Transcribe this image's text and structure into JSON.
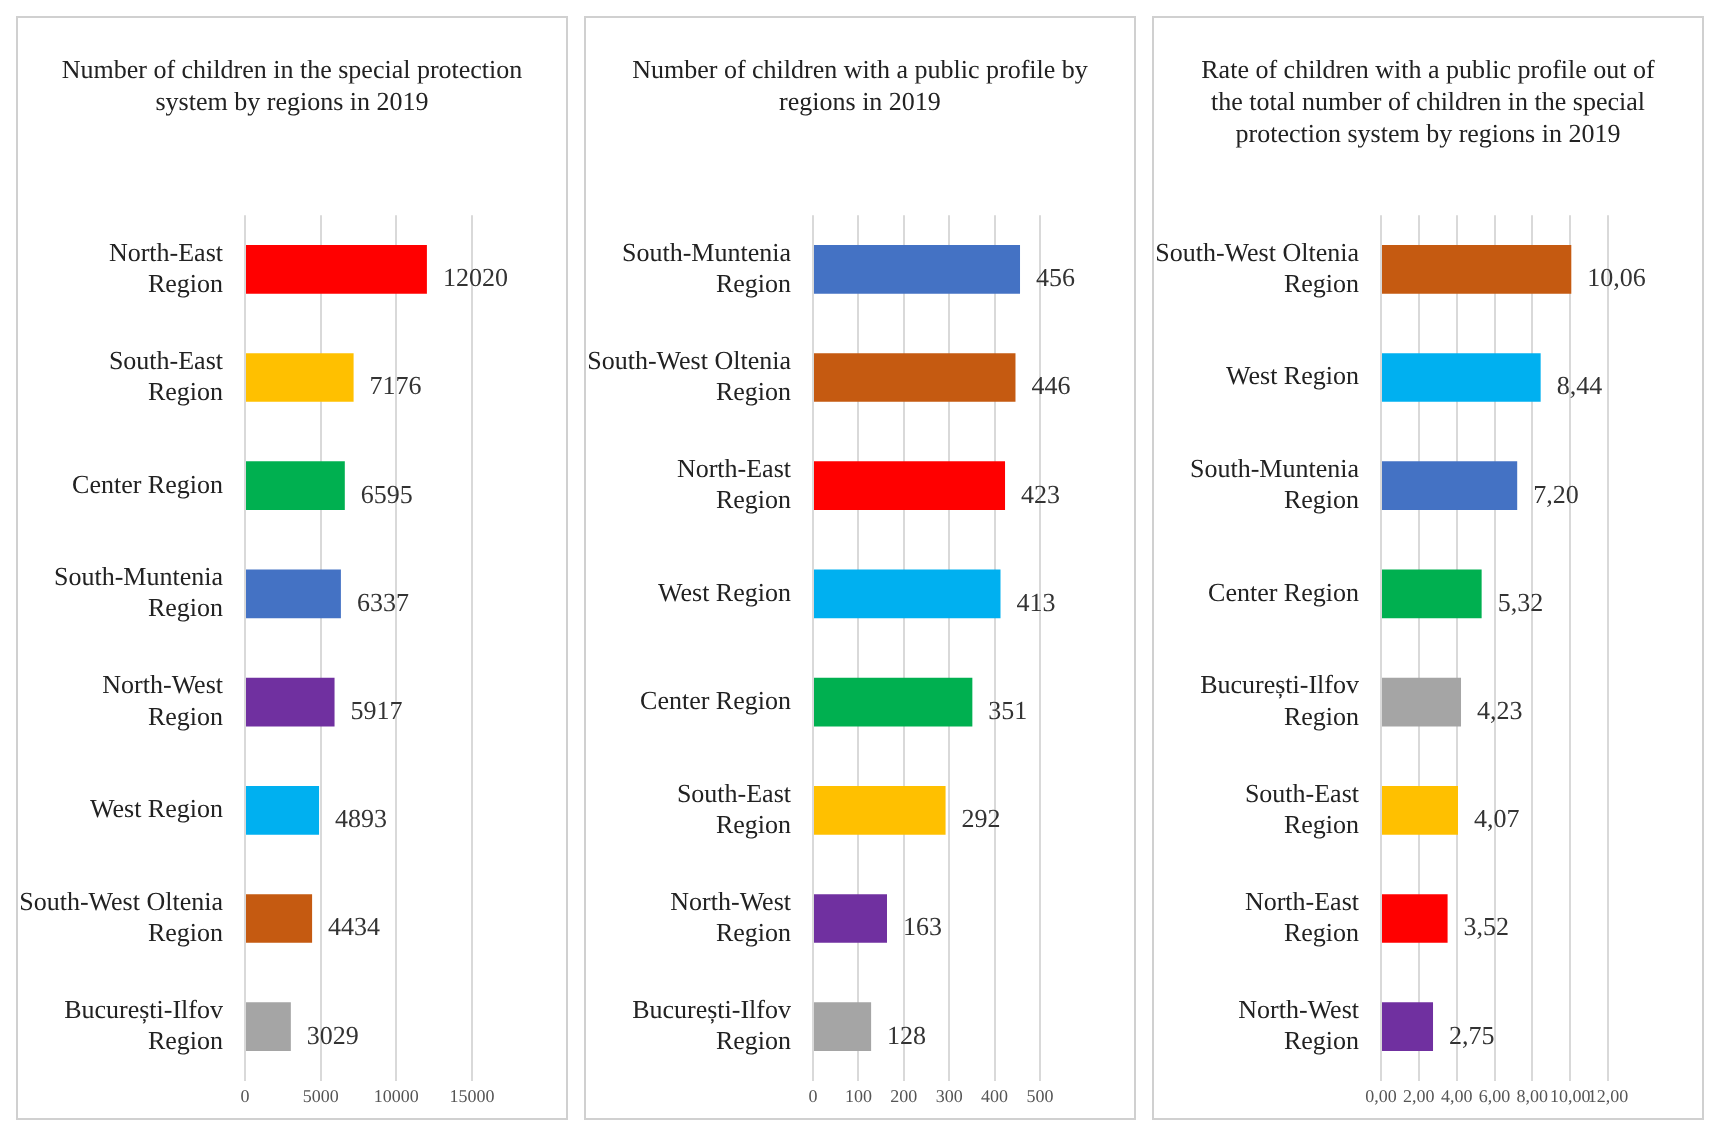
{
  "chart_data": [
    {
      "type": "bar",
      "orientation": "horizontal",
      "title": "Number of children in the special protection system by regions in 2019",
      "categories": [
        "North-East Region",
        "South-East Region",
        "Center Region",
        "South-Muntenia Region",
        "North-West Region",
        "West Region",
        "South-West Oltenia Region",
        "București-Ilfov Region"
      ],
      "values": [
        12020,
        7176,
        6595,
        6337,
        5917,
        4893,
        4434,
        3029
      ],
      "colors": [
        "#ff0000",
        "#ffc000",
        "#00b050",
        "#4472c4",
        "#7030a0",
        "#00b0f0",
        "#c55a11",
        "#a5a5a5"
      ],
      "xlim": [
        0,
        15000
      ],
      "xticks": [
        0,
        5000,
        10000,
        15000
      ],
      "grid": "x",
      "data_labels": true
    },
    {
      "type": "bar",
      "orientation": "horizontal",
      "title": "Number of children with a public profile by regions in 2019",
      "categories": [
        "South-Muntenia Region",
        "South-West Oltenia Region",
        "North-East Region",
        "West Region",
        "Center Region",
        "South-East Region",
        "North-West Region",
        "București-Ilfov Region"
      ],
      "values": [
        456,
        446,
        423,
        413,
        351,
        292,
        163,
        128
      ],
      "colors": [
        "#4472c4",
        "#c55a11",
        "#ff0000",
        "#00b0f0",
        "#00b050",
        "#ffc000",
        "#7030a0",
        "#a5a5a5"
      ],
      "xlim": [
        0,
        500
      ],
      "xticks": [
        0,
        100,
        200,
        300,
        400,
        500
      ],
      "grid": "x",
      "data_labels": true
    },
    {
      "type": "bar",
      "orientation": "horizontal",
      "title": "Rate of children with a public profile out of the total number of children in the special protection system by regions in 2019",
      "categories": [
        "South-West Oltenia Region",
        "West Region",
        "South-Muntenia Region",
        "Center Region",
        "București-Ilfov Region",
        "South-East Region",
        "North-East Region",
        "North-West Region"
      ],
      "values": [
        10.06,
        8.44,
        7.2,
        5.32,
        4.23,
        4.07,
        3.52,
        2.75
      ],
      "value_labels": [
        "10,06",
        "8,44",
        "7,20",
        "5,32",
        "4,23",
        "4,07",
        "3,52",
        "2,75"
      ],
      "colors": [
        "#c55a11",
        "#00b0f0",
        "#4472c4",
        "#00b050",
        "#a5a5a5",
        "#ffc000",
        "#ff0000",
        "#7030a0"
      ],
      "xlim": [
        0,
        12
      ],
      "xticks": [
        {
          "value": 0,
          "label": "0,00"
        },
        {
          "value": 2,
          "label": "2,00"
        },
        {
          "value": 4,
          "label": "4,00"
        },
        {
          "value": 6,
          "label": "6,00"
        },
        {
          "value": 8,
          "label": "8,00"
        },
        {
          "value": 10,
          "label": "10,00"
        },
        {
          "value": 12,
          "label": "12,00"
        }
      ],
      "grid": "x"
    }
  ]
}
